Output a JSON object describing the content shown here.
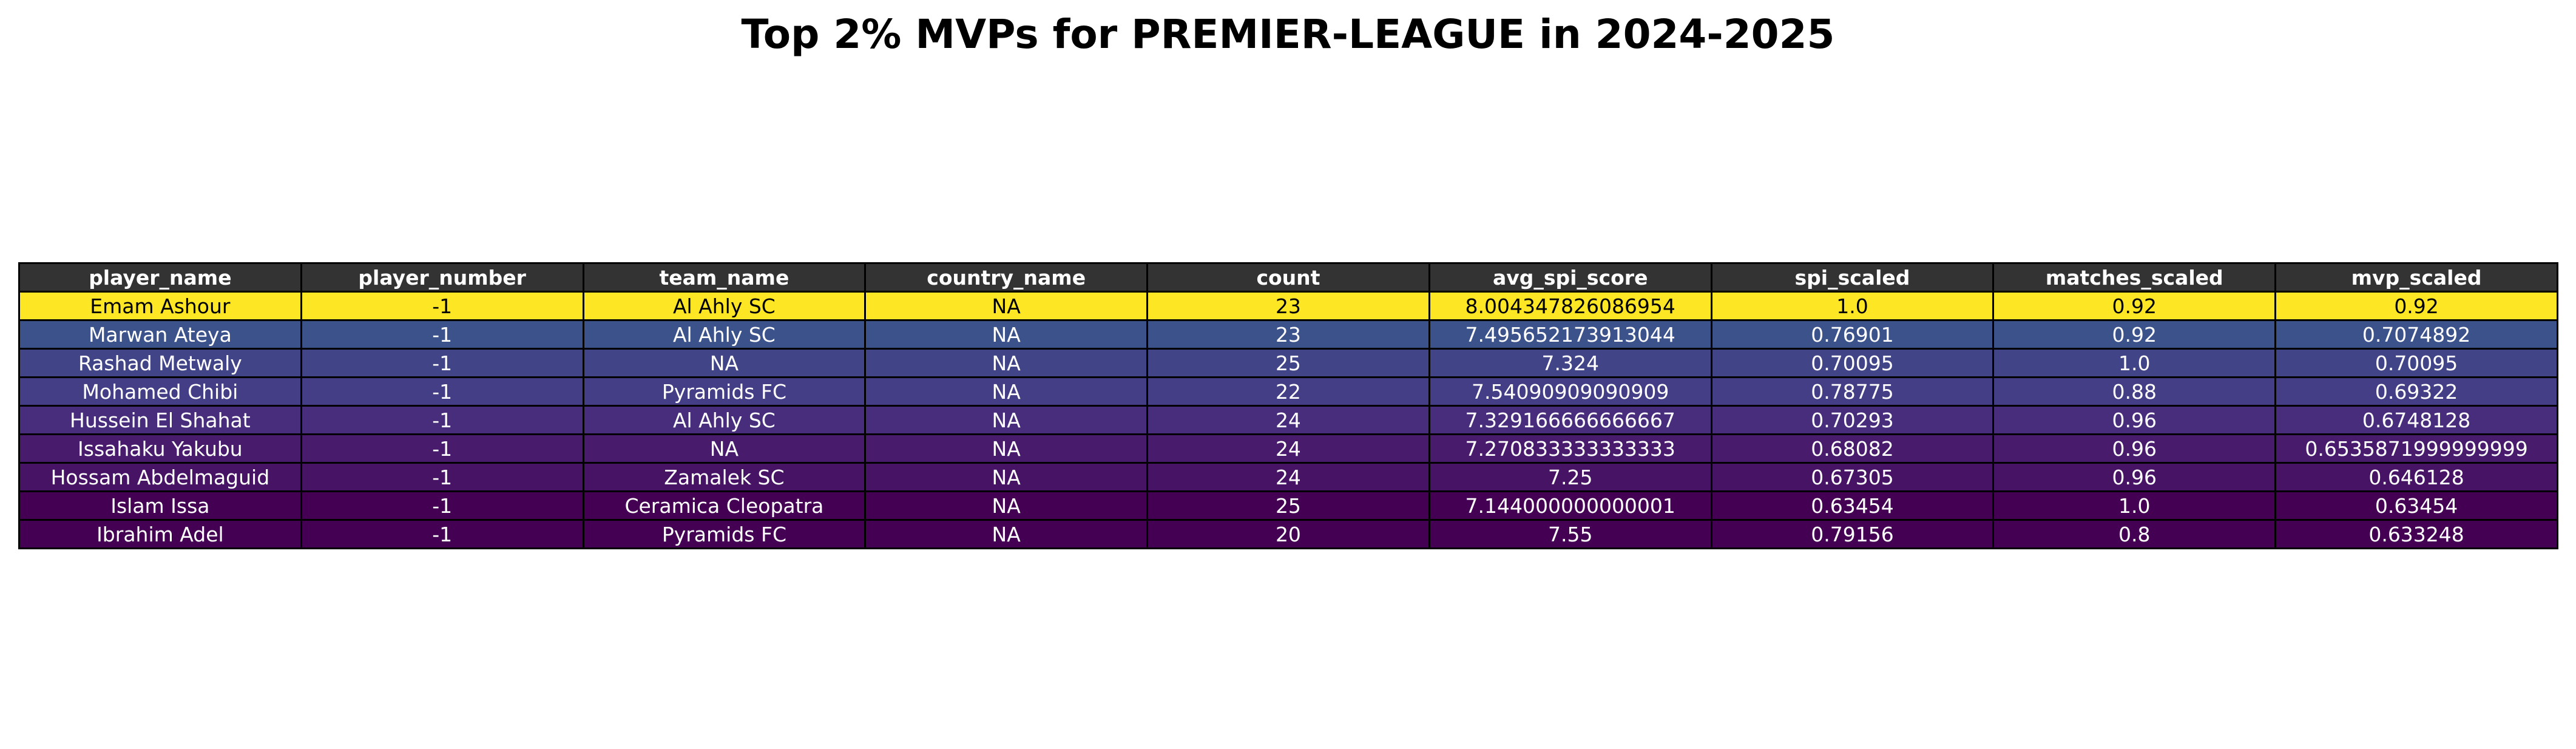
{
  "title": "Top 2% MVPs for PREMIER-LEAGUE in 2024-2025",
  "chart_data": {
    "type": "table",
    "title": "Top 2% MVPs for PREMIER-LEAGUE in 2024-2025",
    "header_color": "#333333",
    "colormap": "viridis",
    "columns": [
      "player_name",
      "player_number",
      "team_name",
      "country_name",
      "count",
      "avg_spi_score",
      "spi_scaled",
      "matches_scaled",
      "mvp_scaled"
    ],
    "rows": [
      {
        "cells": [
          "Emam Ashour",
          "-1",
          "Al Ahly SC",
          "NA",
          "23",
          "8.004347826086954",
          "1.0",
          "0.92",
          "0.92"
        ],
        "bg": "#fde725",
        "fg": "#000000"
      },
      {
        "cells": [
          "Marwan Ateya",
          "-1",
          "Al Ahly SC",
          "NA",
          "23",
          "7.495652173913044",
          "0.76901",
          "0.92",
          "0.7074892"
        ],
        "bg": "#3b528b",
        "fg": "#ffffff"
      },
      {
        "cells": [
          "Rashad Metwaly",
          "-1",
          "NA",
          "NA",
          "25",
          "7.324",
          "0.70095",
          "1.0",
          "0.70095"
        ],
        "bg": "#414487",
        "fg": "#ffffff"
      },
      {
        "cells": [
          "Mohamed Chibi",
          "-1",
          "Pyramids FC",
          "NA",
          "22",
          "7.54090909090909",
          "0.78775",
          "0.88",
          "0.69322"
        ],
        "bg": "#433e85",
        "fg": "#ffffff"
      },
      {
        "cells": [
          "Hussein El Shahat",
          "-1",
          "Al Ahly SC",
          "NA",
          "24",
          "7.329166666666667",
          "0.70293",
          "0.96",
          "0.6748128"
        ],
        "bg": "#472d7b",
        "fg": "#ffffff"
      },
      {
        "cells": [
          "Issahaku Yakubu",
          "-1",
          "NA",
          "NA",
          "24",
          "7.270833333333333",
          "0.68082",
          "0.96",
          "0.6535871999999999"
        ],
        "bg": "#481b6d",
        "fg": "#ffffff"
      },
      {
        "cells": [
          "Hossam Abdelmaguid",
          "-1",
          "Zamalek SC",
          "NA",
          "24",
          "7.25",
          "0.67305",
          "0.96",
          "0.646128"
        ],
        "bg": "#471365",
        "fg": "#ffffff"
      },
      {
        "cells": [
          "Islam Issa",
          "-1",
          "Ceramica Cleopatra",
          "NA",
          "25",
          "7.144000000000001",
          "0.63454",
          "1.0",
          "0.63454"
        ],
        "bg": "#440154",
        "fg": "#ffffff"
      },
      {
        "cells": [
          "Ibrahim Adel",
          "-1",
          "Pyramids FC",
          "NA",
          "20",
          "7.55",
          "0.79156",
          "0.8",
          "0.633248"
        ],
        "bg": "#440154",
        "fg": "#ffffff"
      }
    ]
  }
}
